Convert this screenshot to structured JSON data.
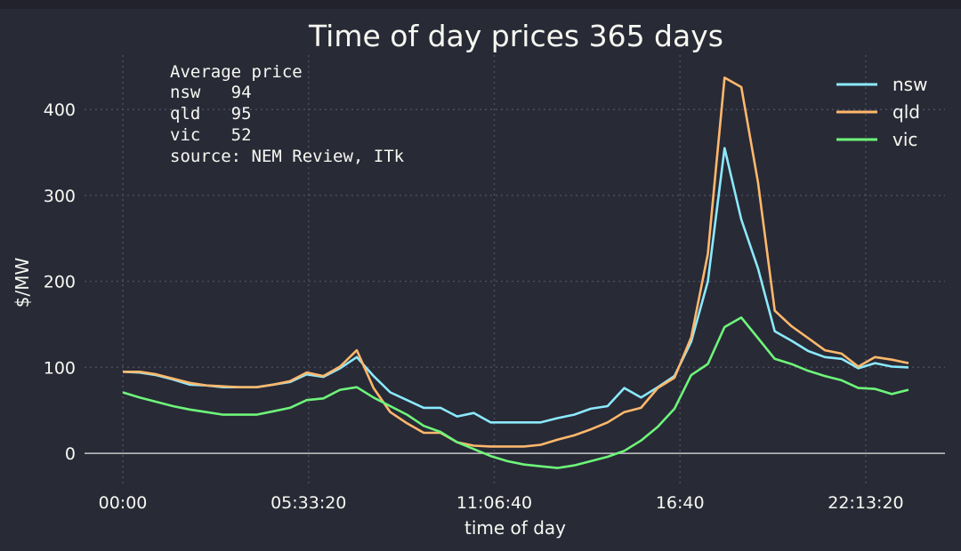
{
  "chart_data": {
    "type": "line",
    "title": "Time of day prices 365 days",
    "xlabel": "time of day",
    "ylabel": "$/MW",
    "x_unit": "half-hour index (0 = 00:00, 47 = 23:30)",
    "x_seconds_step": 1800,
    "xlim_seconds": [
      -4120,
      88530
    ],
    "ylim": [
      -36,
      517
    ],
    "xticks": [
      {
        "value": 0,
        "label": "00:00"
      },
      {
        "value": 20000,
        "label": "05:33:20"
      },
      {
        "value": 40000,
        "label": "11:06:40"
      },
      {
        "value": 60000,
        "label": "16:40"
      },
      {
        "value": 80000,
        "label": "22:13:20"
      }
    ],
    "yticks": [
      {
        "value": 0,
        "label": "0"
      },
      {
        "value": 100,
        "label": "100"
      },
      {
        "value": 200,
        "label": "200"
      },
      {
        "value": 300,
        "label": "300"
      },
      {
        "value": 400,
        "label": "400"
      }
    ],
    "grid": true,
    "legend_position": "top-right",
    "annotation": [
      "Average price",
      "nsw   94",
      "qld   95",
      "vic   52",
      "source: NEM Review, ITk"
    ],
    "series": [
      {
        "name": "nsw",
        "color": "#8be9fd",
        "values": [
          95,
          94,
          91,
          86,
          80,
          79,
          77,
          77,
          77,
          80,
          83,
          92,
          89,
          99,
          112,
          90,
          71,
          62,
          53,
          53,
          43,
          47,
          36,
          36,
          36,
          36,
          41,
          45,
          52,
          55,
          76,
          65,
          77,
          90,
          130,
          200,
          355,
          272,
          215,
          142,
          131,
          119,
          112,
          110,
          99,
          105,
          101,
          100
        ]
      },
      {
        "name": "qld",
        "color": "#ffb86c",
        "values": [
          95,
          95,
          92,
          87,
          82,
          79,
          78,
          77,
          77,
          80,
          84,
          94,
          90,
          101,
          120,
          76,
          48,
          35,
          24,
          24,
          13,
          9,
          8,
          8,
          8,
          10,
          16,
          21,
          28,
          36,
          48,
          53,
          76,
          88,
          135,
          232,
          437,
          426,
          315,
          166,
          148,
          134,
          120,
          116,
          101,
          112,
          109,
          105
        ]
      },
      {
        "name": "vic",
        "color": "#6ef57a",
        "values": [
          71,
          65,
          60,
          55,
          51,
          48,
          45,
          45,
          45,
          49,
          53,
          62,
          64,
          74,
          77,
          65,
          55,
          45,
          32,
          25,
          13,
          5,
          -3,
          -9,
          -13,
          -15,
          -17,
          -14,
          -9,
          -4,
          3,
          15,
          31,
          52,
          91,
          104,
          147,
          158,
          134,
          110,
          104,
          96,
          90,
          85,
          76,
          75,
          69,
          74
        ]
      }
    ]
  }
}
